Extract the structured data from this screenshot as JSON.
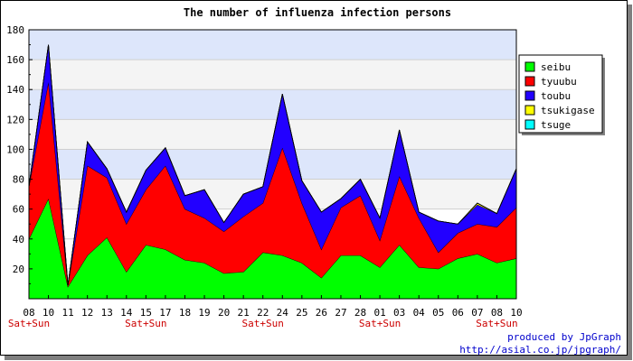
{
  "chart_data": {
    "type": "area",
    "stacked": true,
    "title": "The number of influenza infection persons",
    "xlabel": "",
    "ylabel": "",
    "ylim": [
      0,
      180
    ],
    "yticks": [
      20,
      40,
      60,
      80,
      100,
      120,
      140,
      160,
      180
    ],
    "grid": true,
    "legend_position": "right",
    "categories": [
      "08",
      "10",
      "11",
      "12",
      "13",
      "14",
      "15",
      "17",
      "18",
      "19",
      "20",
      "21",
      "22",
      "24",
      "25",
      "26",
      "27",
      "28",
      "01",
      "03",
      "04",
      "05",
      "06",
      "07",
      "08",
      "10"
    ],
    "weekend_label": "Sat+Sun",
    "weekend_marks": [
      "08",
      "15",
      "22",
      "01",
      "08"
    ],
    "series": [
      {
        "name": "seibu",
        "color": "#00ff00",
        "values": [
          40,
          67,
          8,
          29,
          41,
          18,
          36,
          33,
          26,
          24,
          17,
          18,
          31,
          29,
          24,
          14,
          29,
          29,
          21,
          36,
          21,
          20,
          27,
          30,
          24,
          27
        ]
      },
      {
        "name": "tyuubu",
        "color": "#ff0000",
        "values": [
          35,
          78,
          1,
          60,
          40,
          32,
          37,
          56,
          34,
          30,
          28,
          37,
          33,
          72,
          40,
          19,
          32,
          40,
          18,
          46,
          33,
          11,
          17,
          20,
          24,
          34
        ]
      },
      {
        "name": "toubu",
        "color": "#2200ff",
        "values": [
          0,
          25,
          0,
          16,
          6,
          8,
          13,
          12,
          9,
          19,
          6,
          15,
          11,
          36,
          15,
          25,
          6,
          11,
          15,
          31,
          4,
          21,
          6,
          13,
          9,
          26
        ]
      },
      {
        "name": "tsukigase",
        "color": "#ffff00",
        "values": [
          0,
          0,
          0,
          0,
          0,
          0,
          0,
          0,
          0,
          0,
          0,
          0,
          0,
          0,
          0,
          0,
          0,
          0,
          0,
          0,
          0,
          0,
          0,
          1,
          0,
          0
        ]
      },
      {
        "name": "tsuge",
        "color": "#00ffff",
        "values": [
          0,
          0,
          0,
          0,
          0,
          0,
          0,
          0,
          0,
          0,
          0,
          0,
          0,
          0,
          0,
          0,
          0,
          0,
          0,
          0,
          0,
          0,
          0,
          0,
          0,
          0
        ]
      }
    ]
  },
  "footer": {
    "credit_line1": "produced by JpGraph",
    "credit_line2": "http://asial.co.jp/jpgraph/"
  }
}
